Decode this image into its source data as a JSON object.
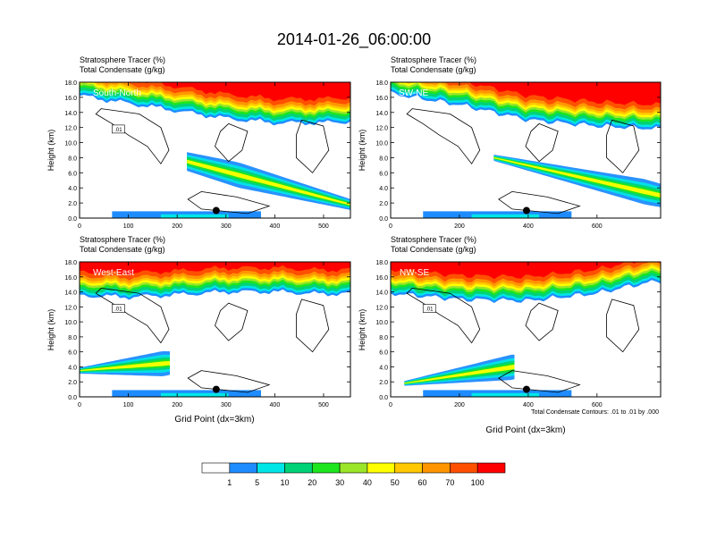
{
  "figure": {
    "title": "2014-01-26_06:00:00",
    "footnote": "Total Condensate Contours: .01 to .01 by .000"
  },
  "colors": {
    "background": "#ffffff",
    "fill_scale": [
      "#ffffff",
      "#1e8cff",
      "#00e6e6",
      "#00d278",
      "#1ee61e",
      "#9be628",
      "#ffff00",
      "#ffc800",
      "#ff9600",
      "#ff5000",
      "#ff0000"
    ]
  },
  "colorbar": {
    "levels": [
      "1",
      "5",
      "10",
      "20",
      "30",
      "40",
      "50",
      "60",
      "70",
      "100"
    ]
  },
  "chart_data": [
    {
      "type": "heatmap",
      "panel_label": "South-North",
      "title_line1": "Stratosphere Tracer   (%)",
      "title_line2": "Total Condensate   (g/kg)",
      "ylabel": "Height (km)",
      "xlabel": "",
      "xlim": [
        0,
        555
      ],
      "ylim": [
        0,
        18
      ],
      "xticks": [
        "0",
        "100",
        "200",
        "300",
        "400",
        "500"
      ],
      "yticks": [
        "0.0",
        "2.0",
        "4.0",
        "6.0",
        "8.0",
        "10.0",
        "12.0",
        "14.0",
        "16.0",
        "18.0"
      ],
      "contour_label": ".01",
      "marker": {
        "x": 280,
        "y": 1.0
      },
      "tracer_base_km": {
        "x": [
          0,
          100,
          200,
          300,
          400,
          500,
          555
        ],
        "y": [
          16.2,
          15.2,
          14.2,
          13.2,
          12.6,
          12.6,
          12.8
        ]
      },
      "plume": {
        "x0": 220,
        "x1": 555,
        "y_start_km": 7.5,
        "y_end_km": 1.8,
        "peak_x": 325,
        "peak_y_km": 4.5
      }
    },
    {
      "type": "heatmap",
      "panel_label": "SW-NE",
      "title_line1": "Stratosphere Tracer   (%)",
      "title_line2": "Total Condensate   (g/kg)",
      "ylabel": "Height (km)",
      "xlabel": "",
      "xlim": [
        0,
        785
      ],
      "ylim": [
        0,
        18
      ],
      "xticks": [
        "0",
        "200",
        "400",
        "600"
      ],
      "yticks": [
        "0.0",
        "2.0",
        "4.0",
        "6.0",
        "8.0",
        "10.0",
        "12.0",
        "14.0",
        "16.0",
        "18.0"
      ],
      "contour_label": "",
      "marker": {
        "x": 395,
        "y": 1.0
      },
      "tracer_base_km": {
        "x": [
          0,
          200,
          400,
          600,
          785
        ],
        "y": [
          16.5,
          15.0,
          13.0,
          12.2,
          11.8
        ]
      },
      "plume": {
        "x0": 300,
        "x1": 785,
        "y_start_km": 8.0,
        "y_end_km": 3.0,
        "peak_x": 740,
        "peak_y_km": 4.5
      }
    },
    {
      "type": "heatmap",
      "panel_label": "West-East",
      "title_line1": "Stratosphere Tracer   (%)",
      "title_line2": "Total Condensate   (g/kg)",
      "ylabel": "Height (km)",
      "xlabel": "Grid Point (dx=3km)",
      "xlim": [
        0,
        555
      ],
      "ylim": [
        0,
        18
      ],
      "xticks": [
        "0",
        "100",
        "200",
        "300",
        "400",
        "500"
      ],
      "yticks": [
        "0.0",
        "2.0",
        "4.0",
        "6.0",
        "8.0",
        "10.0",
        "12.0",
        "14.0",
        "16.0",
        "18.0"
      ],
      "contour_label": ".01",
      "marker": {
        "x": 280,
        "y": 1.0
      },
      "tracer_base_km": {
        "x": [
          0,
          100,
          200,
          300,
          400,
          500,
          555
        ],
        "y": [
          13.5,
          13.3,
          13.6,
          14.0,
          14.0,
          13.7,
          13.8
        ]
      },
      "plume": {
        "x0": 0,
        "x1": 185,
        "y_start_km": 3.5,
        "y_end_km": 4.5,
        "peak_x": 170,
        "peak_y_km": 4.0
      }
    },
    {
      "type": "heatmap",
      "panel_label": "NW-SE",
      "title_line1": "Stratosphere Tracer   (%)",
      "title_line2": "Total Condensate   (g/kg)",
      "ylabel": "Height (km)",
      "xlabel": "Grid Point (dx=3km)",
      "xlim": [
        0,
        785
      ],
      "ylim": [
        0,
        18
      ],
      "xticks": [
        "0",
        "200",
        "400",
        "600"
      ],
      "yticks": [
        "0.0",
        "2.0",
        "4.0",
        "6.0",
        "8.0",
        "10.0",
        "12.0",
        "14.0",
        "16.0",
        "18.0"
      ],
      "contour_label": ".01",
      "marker": {
        "x": 395,
        "y": 1.0
      },
      "tracer_base_km": {
        "x": [
          0,
          200,
          400,
          600,
          700,
          785
        ],
        "y": [
          13.8,
          13.0,
          12.8,
          13.8,
          14.8,
          15.5
        ]
      },
      "plume": {
        "x0": 40,
        "x1": 360,
        "y_start_km": 1.8,
        "y_end_km": 4.0,
        "peak_x": 350,
        "peak_y_km": 4.2
      }
    }
  ]
}
